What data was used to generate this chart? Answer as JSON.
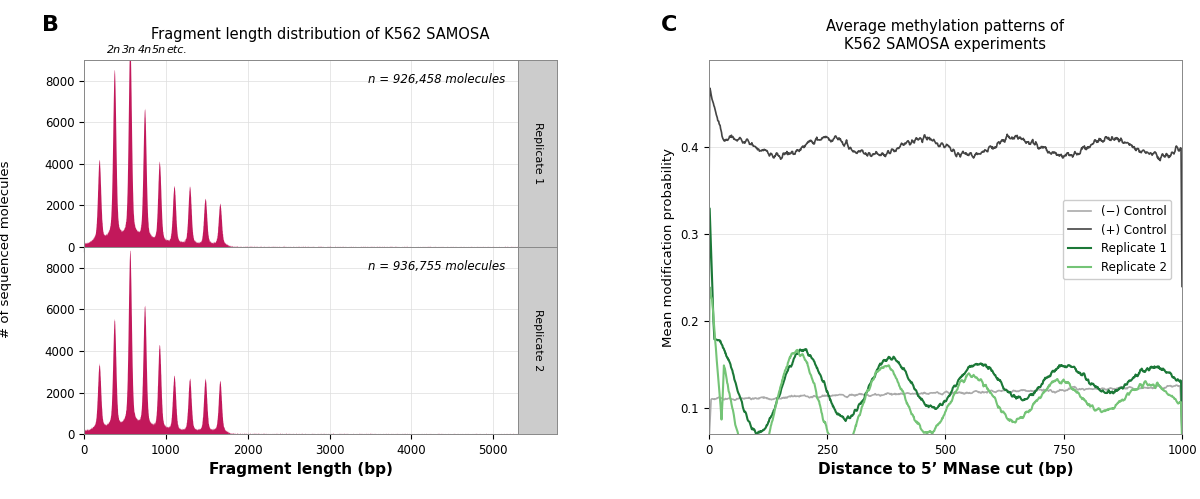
{
  "panel_b_title": "Fragment length distribution of K562 SAMOSA",
  "panel_b_xlabel": "Fragment length (bp)",
  "panel_b_ylabel": "# of sequenced molecules",
  "panel_b_xlim": [
    0,
    5300
  ],
  "panel_b_ylim": [
    0,
    9000
  ],
  "panel_b_yticks": [
    0,
    2000,
    4000,
    6000,
    8000
  ],
  "panel_b_xticks": [
    0,
    1000,
    2000,
    3000,
    4000,
    5000
  ],
  "rep1_n": "n = 926,458 molecules",
  "rep2_n": "n = 936,755 molecules",
  "hist_color": "#C2185B",
  "nuc_labels": [
    "2n",
    "3n",
    "4n",
    "5n",
    "etc."
  ],
  "nuc_x_data": [
    370,
    555,
    740,
    920,
    1130
  ],
  "panel_c_title": "Average methylation patterns of\nK562 SAMOSA experiments",
  "panel_c_xlabel": "Distance to 5’ MNase cut (bp)",
  "panel_c_ylabel": "Mean modification probability",
  "panel_c_xlim": [
    0,
    1000
  ],
  "panel_c_ylim": [
    0.07,
    0.5
  ],
  "panel_c_yticks": [
    0.1,
    0.2,
    0.3,
    0.4
  ],
  "panel_c_xticks": [
    0,
    250,
    500,
    750,
    1000
  ],
  "neg_control_color": "#AAAAAA",
  "pos_control_color": "#444444",
  "rep1_color": "#1B7837",
  "rep2_color": "#74C476",
  "legend_labels": [
    "(−) Control",
    "(+) Control",
    "Replicate 1",
    "Replicate 2"
  ],
  "bg_color": "#FFFFFF",
  "grid_color": "#DDDDDD",
  "strip_bg": "#CCCCCC",
  "peaks1": [
    185,
    370,
    560,
    740,
    920,
    1100,
    1290,
    1480,
    1660
  ],
  "heights1": [
    3500,
    7300,
    8500,
    5700,
    3500,
    2500,
    2500,
    2000,
    1800
  ],
  "peaks2": [
    185,
    370,
    560,
    740,
    920,
    1100,
    1290,
    1480,
    1660
  ],
  "heights2": [
    2800,
    4700,
    7600,
    5300,
    3700,
    2400,
    2300,
    2300,
    2200
  ],
  "sigma_narrow": 18,
  "sigma_broad": 60
}
